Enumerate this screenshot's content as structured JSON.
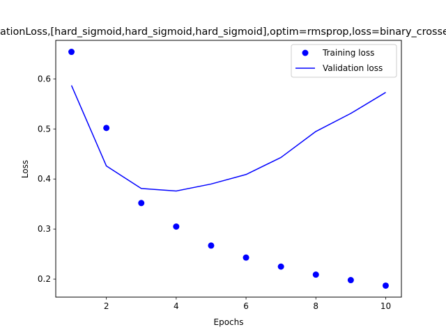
{
  "chart_data": {
    "type": "line",
    "title": "ValidationLoss,[hard_sigmoid,hard_sigmoid,hard_sigmoid],optim=rmsprop,loss=binary_crossentropy",
    "xlabel": "Epochs",
    "ylabel": "Loss",
    "x": [
      1,
      2,
      3,
      4,
      5,
      6,
      7,
      8,
      9,
      10
    ],
    "xlim": [
      0.55,
      10.45
    ],
    "ylim": [
      0.164,
      0.677
    ],
    "xticks": [
      2,
      4,
      6,
      8,
      10
    ],
    "yticks": [
      0.2,
      0.3,
      0.4,
      0.5,
      0.6
    ],
    "grid": false,
    "legend_position": "top-right",
    "series": [
      {
        "name": "Training loss",
        "style": "markers",
        "color": "#0000ff",
        "values": [
          0.654,
          0.502,
          0.352,
          0.305,
          0.267,
          0.243,
          0.225,
          0.209,
          0.198,
          0.187
        ]
      },
      {
        "name": "Validation loss",
        "style": "line",
        "color": "#0000ff",
        "values": [
          0.587,
          0.426,
          0.381,
          0.376,
          0.39,
          0.409,
          0.443,
          0.495,
          0.531,
          0.573
        ]
      }
    ]
  }
}
